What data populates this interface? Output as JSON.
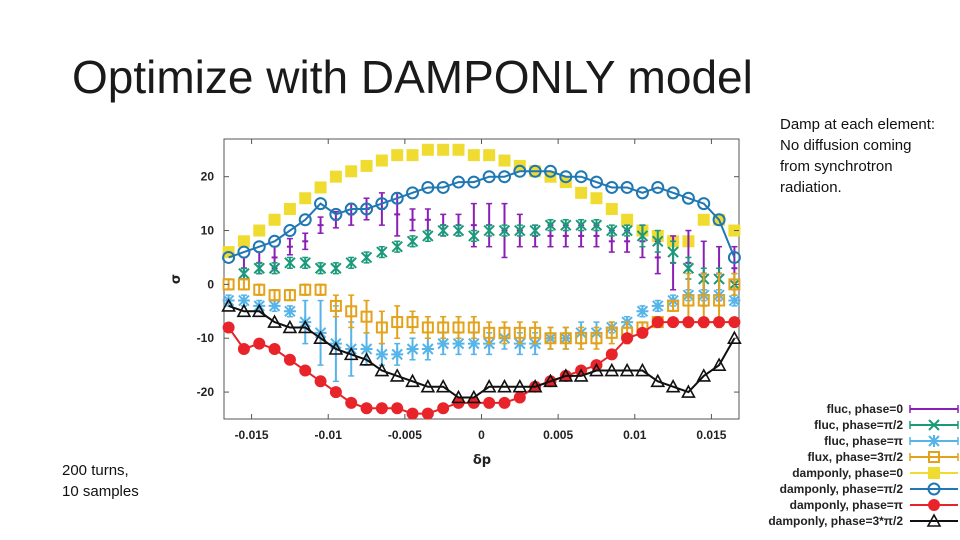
{
  "slide": {
    "title": "Optimize with DAMPONLY model",
    "note_lines": [
      "Damp at each element:",
      "No diffusion coming",
      "from synchrotron",
      "radiation."
    ],
    "samples_lines": [
      "200 turns,",
      "10 samples"
    ]
  },
  "chart_data": {
    "type": "scatter",
    "xlabel": "δp",
    "ylabel": "σ",
    "xlim": [
      -0.0168,
      0.0168
    ],
    "ylim": [
      -25,
      27
    ],
    "xticks": [
      -0.015,
      -0.01,
      -0.005,
      0,
      0.005,
      0.01,
      0.015
    ],
    "xtick_labels": [
      "-0.015",
      "-0.01",
      "-0.005",
      "0",
      "0.005",
      "0.01",
      "0.015"
    ],
    "yticks": [
      -20,
      -10,
      0,
      10,
      20
    ],
    "ytick_labels": [
      "-20",
      "-10",
      "0",
      "10",
      "20"
    ],
    "grid": false,
    "legend_position": "bottom-right outside",
    "x": [
      -0.0165,
      -0.0155,
      -0.0145,
      -0.0135,
      -0.0125,
      -0.0115,
      -0.0105,
      -0.0095,
      -0.0085,
      -0.0075,
      -0.0065,
      -0.0055,
      -0.0045,
      -0.0035,
      -0.0025,
      -0.0015,
      -0.0005,
      0.0005,
      0.0015,
      0.0025,
      0.0035,
      0.0045,
      0.0055,
      0.0065,
      0.0075,
      0.0085,
      0.0095,
      0.0105,
      0.0115,
      0.0125,
      0.0135,
      0.0145,
      0.0155,
      0.0165
    ],
    "series": [
      {
        "name": "fluc, phase=0",
        "color": "#8a1fb5",
        "marker": "vbar",
        "line": false,
        "values": [
          null,
          3,
          4,
          5,
          7,
          8,
          11,
          12,
          13,
          14,
          14,
          13,
          12,
          12,
          11,
          11,
          11,
          11,
          10,
          10,
          9,
          9,
          9,
          9,
          9,
          8,
          8,
          8,
          5,
          4,
          4,
          2,
          2,
          3
        ],
        "errors": [
          0,
          2,
          2,
          2,
          1.5,
          1.5,
          1.5,
          1.5,
          2,
          2,
          3,
          4,
          2,
          2,
          2,
          2,
          4,
          4,
          5,
          3,
          2,
          2,
          2,
          2,
          2,
          2,
          2,
          3,
          3,
          5,
          6,
          6,
          5,
          4
        ]
      },
      {
        "name": "fluc, phase=π/2",
        "color": "#1a9a7a",
        "marker": "x",
        "line": false,
        "values": [
          null,
          2,
          3,
          3,
          4,
          4,
          3,
          3,
          4,
          5,
          6,
          7,
          8,
          9,
          10,
          10,
          9,
          10,
          10,
          10,
          10,
          11,
          11,
          11,
          11,
          10,
          10,
          9,
          8,
          6,
          3,
          1,
          1,
          0
        ],
        "errors": [
          0,
          1,
          1,
          1,
          1,
          1,
          1,
          1,
          1,
          1,
          1,
          1,
          1,
          1,
          1,
          1,
          1,
          1,
          1,
          1,
          1,
          1,
          1,
          1,
          1,
          1,
          1,
          2,
          2,
          2,
          2,
          2,
          2,
          2
        ]
      },
      {
        "name": "fluc, phase=π",
        "color": "#56b4e9",
        "marker": "star",
        "line": false,
        "values": [
          -3,
          -3,
          -4,
          -4,
          -5,
          -7,
          -9,
          -11,
          -12,
          -12,
          -13,
          -13,
          -12,
          -12,
          -11,
          -11,
          -11,
          -11,
          -10,
          -11,
          -11,
          -10,
          -10,
          -9,
          -9,
          -8,
          -7,
          -5,
          -4,
          -3,
          -2,
          -2,
          -2,
          -3
        ],
        "errors": [
          1,
          1,
          1,
          1,
          1,
          4,
          6,
          7,
          5,
          3,
          2,
          2,
          2,
          2,
          2,
          2,
          2,
          2,
          2,
          2,
          2,
          2,
          2,
          2,
          2,
          1,
          1,
          1,
          1,
          1,
          1,
          1,
          1,
          1
        ]
      },
      {
        "name": "flux, phase=3π/2",
        "color": "#e3a21a",
        "marker": "square-open",
        "line": false,
        "values": [
          0,
          0,
          -1,
          -2,
          -2,
          -1,
          -1,
          -4,
          -5,
          -6,
          -8,
          -7,
          -7,
          -8,
          -8,
          -8,
          -8,
          -9,
          -9,
          -9,
          -9,
          -10,
          -10,
          -10,
          -10,
          -9,
          -9,
          -8,
          -7,
          -4,
          -3,
          -3,
          -3,
          0
        ],
        "errors": [
          1,
          1,
          1,
          1,
          1,
          1,
          1,
          2,
          3,
          3,
          3,
          3,
          2,
          2,
          2,
          2,
          2,
          2,
          2,
          2,
          2,
          2,
          2,
          2,
          2,
          2,
          2,
          1,
          1,
          1,
          5,
          5,
          5,
          2
        ]
      },
      {
        "name": "damponly, phase=0",
        "color": "#f0dc30",
        "marker": "square-filled",
        "line": false,
        "values": [
          6,
          8,
          10,
          12,
          14,
          16,
          18,
          20,
          21,
          22,
          23,
          24,
          24,
          25,
          25,
          25,
          24,
          24,
          23,
          22,
          21,
          20,
          19,
          17,
          16,
          14,
          12,
          10,
          9,
          8,
          8,
          12,
          12,
          10
        ],
        "errors": []
      },
      {
        "name": "damponly, phase=π/2",
        "color": "#1f77b4",
        "marker": "circle-open",
        "line": true,
        "values": [
          5,
          6,
          7,
          8,
          10,
          12,
          15,
          13,
          14,
          14,
          15,
          16,
          17,
          18,
          18,
          19,
          19,
          20,
          20,
          21,
          21,
          21,
          20,
          20,
          19,
          18,
          18,
          17,
          18,
          17,
          16,
          15,
          12,
          5
        ],
        "errors": []
      },
      {
        "name": "damponly, phase=π",
        "color": "#e8232a",
        "marker": "circle-filled",
        "line": true,
        "values": [
          -8,
          -12,
          -11,
          -12,
          -14,
          -16,
          -18,
          -20,
          -22,
          -23,
          -23,
          -23,
          -24,
          -24,
          -23,
          -22,
          -22,
          -22,
          -22,
          -21,
          -19,
          -18,
          -17,
          -16,
          -15,
          -13,
          -10,
          -9,
          -7,
          -7,
          -7,
          -7,
          -7,
          -7
        ],
        "errors": []
      },
      {
        "name": "damponly, phase=3*π/2",
        "color": "#111111",
        "marker": "triangle-open",
        "line": true,
        "values": [
          -4,
          -5,
          -5,
          -7,
          -8,
          -8,
          -10,
          -12,
          -13,
          -14,
          -16,
          -17,
          -18,
          -19,
          -19,
          -21,
          -21,
          -19,
          -19,
          -19,
          -19,
          -18,
          -17,
          -17,
          -16,
          -16,
          -16,
          -16,
          -18,
          -19,
          -20,
          -17,
          -15,
          -10
        ],
        "errors": []
      }
    ]
  }
}
